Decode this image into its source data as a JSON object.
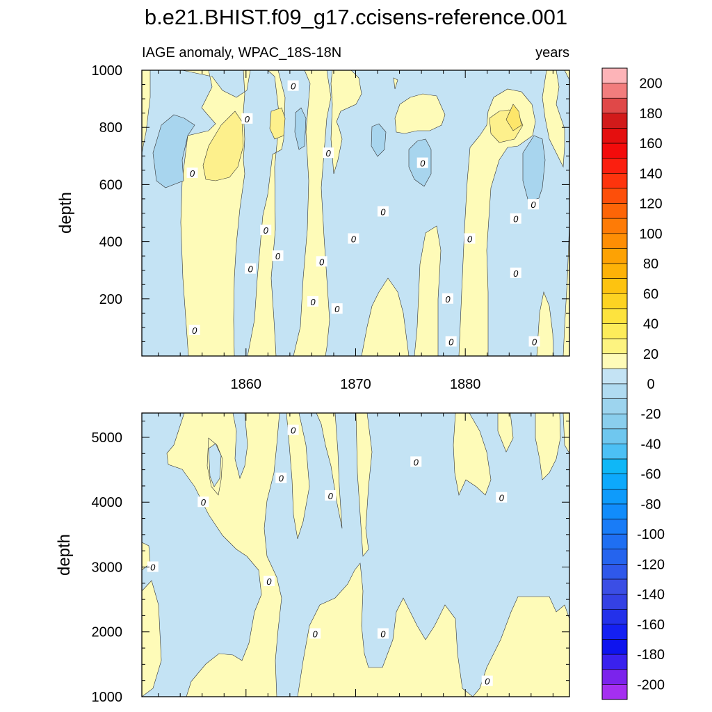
{
  "title": "b.e21.BHIST.f09_g17.ccisens-reference.001",
  "colors": {
    "positive_fill": "#fefbb8",
    "negative_fill": "#c4e3f4",
    "stronger_positive": "#fdf08c",
    "strongest_positive": "#fde66a",
    "stronger_negative": "#a8d5ee",
    "contour_line": "#333333"
  },
  "chart_data": [
    {
      "type": "heatmap",
      "panel": "upper",
      "subtitle_left": "IAGE anomaly, WPAC_18S-18N",
      "subtitle_right": "years",
      "xlabel": "",
      "ylabel": "depth",
      "xlim": [
        1850.5,
        1889.5
      ],
      "ylim": [
        1000,
        0
      ],
      "x_ticks": [
        1860,
        1870,
        1880
      ],
      "x_tick_labels": [
        "1860",
        "1870",
        "1880"
      ],
      "y_ticks": [
        200,
        400,
        600,
        800,
        1000
      ],
      "y_tick_labels": [
        "200",
        "400",
        "600",
        "800",
        "1000"
      ],
      "contour_labels": [
        {
          "text": "0",
          "x": 1855.3,
          "y": 90
        },
        {
          "text": "0",
          "x": 1866.1,
          "y": 190
        },
        {
          "text": "0",
          "x": 1868.3,
          "y": 165
        },
        {
          "text": "0",
          "x": 1860.4,
          "y": 305
        },
        {
          "text": "0",
          "x": 1862.9,
          "y": 350
        },
        {
          "text": "0",
          "x": 1866.9,
          "y": 330
        },
        {
          "text": "0",
          "x": 1878.7,
          "y": 50
        },
        {
          "text": "0",
          "x": 1878.4,
          "y": 200
        },
        {
          "text": "0",
          "x": 1886.3,
          "y": 50
        },
        {
          "text": "0",
          "x": 1884.6,
          "y": 290
        },
        {
          "text": "0",
          "x": 1861.8,
          "y": 440
        },
        {
          "text": "0",
          "x": 1869.8,
          "y": 410
        },
        {
          "text": "0",
          "x": 1880.4,
          "y": 410
        },
        {
          "text": "0",
          "x": 1872.5,
          "y": 505
        },
        {
          "text": "0",
          "x": 1884.6,
          "y": 480
        },
        {
          "text": "0",
          "x": 1886.2,
          "y": 530
        },
        {
          "text": "0",
          "x": 1855.1,
          "y": 640
        },
        {
          "text": "0",
          "x": 1876.1,
          "y": 675
        },
        {
          "text": "0",
          "x": 1867.5,
          "y": 710
        },
        {
          "text": "0",
          "x": 1860.1,
          "y": 830
        },
        {
          "text": "0",
          "x": 1864.3,
          "y": 945
        }
      ]
    },
    {
      "type": "heatmap",
      "panel": "lower",
      "xlabel": "",
      "ylabel": "depth",
      "xlim": [
        1850.5,
        1889.5
      ],
      "ylim": [
        5375,
        1000
      ],
      "y_ticks": [
        1000,
        2000,
        3000,
        4000,
        5000
      ],
      "y_tick_labels": [
        "1000",
        "2000",
        "3000",
        "4000",
        "5000"
      ],
      "contour_labels": [
        {
          "text": "0",
          "x": 1851.5,
          "y": 3000
        },
        {
          "text": "0",
          "x": 1856.1,
          "y": 4000
        },
        {
          "text": "0",
          "x": 1862.1,
          "y": 2780
        },
        {
          "text": "0",
          "x": 1866.3,
          "y": 1970
        },
        {
          "text": "0",
          "x": 1872.5,
          "y": 1970
        },
        {
          "text": "0",
          "x": 1863.2,
          "y": 4370
        },
        {
          "text": "0",
          "x": 1867.7,
          "y": 4100
        },
        {
          "text": "0",
          "x": 1864.3,
          "y": 5110
        },
        {
          "text": "0",
          "x": 1875.5,
          "y": 4620
        },
        {
          "text": "0",
          "x": 1882.0,
          "y": 1240
        },
        {
          "text": "0",
          "x": 1883.3,
          "y": 4070
        }
      ]
    },
    {
      "type": "colorbar",
      "levels": [
        -200,
        -190,
        -180,
        -170,
        -160,
        -150,
        -140,
        -130,
        -120,
        -110,
        -100,
        -90,
        -80,
        -70,
        -60,
        -50,
        -40,
        -30,
        -20,
        -10,
        0,
        10,
        20,
        30,
        40,
        50,
        60,
        70,
        80,
        90,
        100,
        110,
        120,
        130,
        140,
        150,
        160,
        170,
        180,
        190,
        200
      ],
      "tick_labels": [
        "200",
        "180",
        "160",
        "140",
        "120",
        "100",
        "80",
        "60",
        "40",
        "20",
        "0",
        "-20",
        "-40",
        "-60",
        "-80",
        "-100",
        "-120",
        "-140",
        "-160",
        "-180",
        "-200"
      ],
      "colors_top_to_bottom": [
        "#fdb4b8",
        "#f27d7d",
        "#e04848",
        "#d21a1a",
        "#e40f0f",
        "#f30b0b",
        "#fb1f0f",
        "#fe340d",
        "#fd4f0a",
        "#fd6507",
        "#fe7b06",
        "#fe8e04",
        "#fda204",
        "#fdb207",
        "#fdc310",
        "#fdd322",
        "#fde33e",
        "#fdec5a",
        "#fdf380",
        "#fefbb8",
        "#c4e3f4",
        "#b0dbf1",
        "#9dd4ee",
        "#8aceed",
        "#6fc7ef",
        "#4cc0f5",
        "#0fb7f7",
        "#0da9fc",
        "#0e9bfb",
        "#118cfb",
        "#197cf7",
        "#1f6ff2",
        "#2564ee",
        "#2f58ea",
        "#3b4ee5",
        "#3441e4",
        "#2331ea",
        "#1420f2",
        "#0e14ee",
        "#3a21ee",
        "#7b23ec",
        "#a52ff0"
      ]
    }
  ]
}
